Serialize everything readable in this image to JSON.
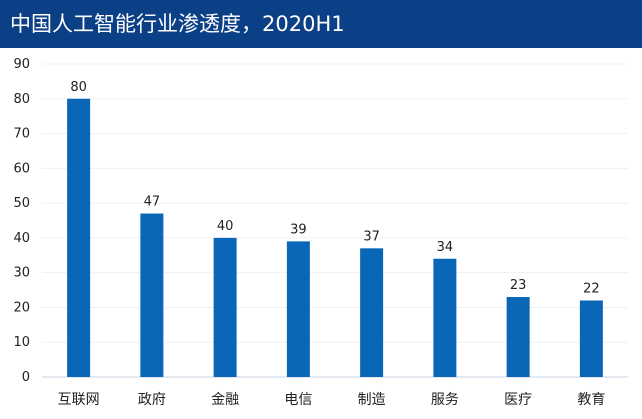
{
  "header": {
    "title": "中国人工智能行业渗透度，2020H1"
  },
  "colors": {
    "header_bg": "#0b3f86",
    "bar": "#0a67b8",
    "axis": "#c9d3e0",
    "grid": "#edf1f6",
    "text": "#222222"
  },
  "chart_data": {
    "type": "bar",
    "title": "中国人工智能行业渗透度，2020H1",
    "xlabel": "",
    "ylabel": "",
    "ylim": [
      0,
      90
    ],
    "yticks": [
      0,
      10,
      20,
      30,
      40,
      50,
      60,
      70,
      80,
      90
    ],
    "grid": true,
    "legend": "none",
    "categories": [
      "互联网",
      "政府",
      "金融",
      "电信",
      "制造",
      "服务",
      "医疗",
      "教育"
    ],
    "values": [
      80,
      47,
      40,
      39,
      37,
      34,
      23,
      22
    ],
    "data_labels": [
      "80",
      "47",
      "40",
      "39",
      "37",
      "34",
      "23",
      "22"
    ]
  }
}
